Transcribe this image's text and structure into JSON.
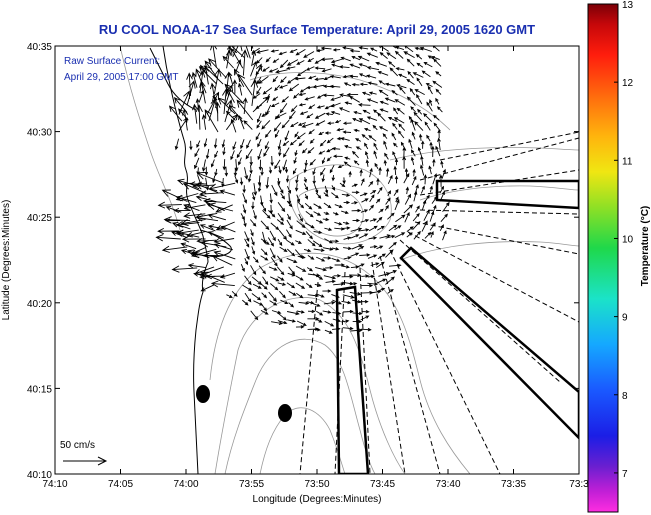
{
  "chart_data": {
    "type": "map",
    "title": "RU COOL  NOAA-17  Sea Surface Temperature:  April 29, 2005 1620 GMT",
    "xlabel": "Longitude (Degrees:Minutes)",
    "ylabel": "Latitude (Degrees:Minutes)",
    "x_ticks": [
      "74:10",
      "74:05",
      "74:00",
      "73:55",
      "73:50",
      "73:45",
      "73:40",
      "73:35",
      "73:3"
    ],
    "y_ticks": [
      "40:35",
      "40:30",
      "40:25",
      "40:20",
      "40:15",
      "40:10"
    ],
    "annotation_lines": [
      "Raw Surface Current:",
      "April 29, 2005 17:00 GMT"
    ],
    "scale_label": "50 cm/s",
    "colorbar": {
      "label": "Temperature (°C)",
      "min": 6.5,
      "max": 13,
      "ticks": [
        7,
        8,
        9,
        10,
        11,
        12,
        13
      ],
      "tick_labels": [
        "7",
        "8",
        "9",
        "10",
        "11",
        "12",
        "13"
      ]
    },
    "colors": {
      "title": "#1a2fb0",
      "vector": "#000000",
      "contour": "#999999",
      "coast": "#000000"
    }
  }
}
